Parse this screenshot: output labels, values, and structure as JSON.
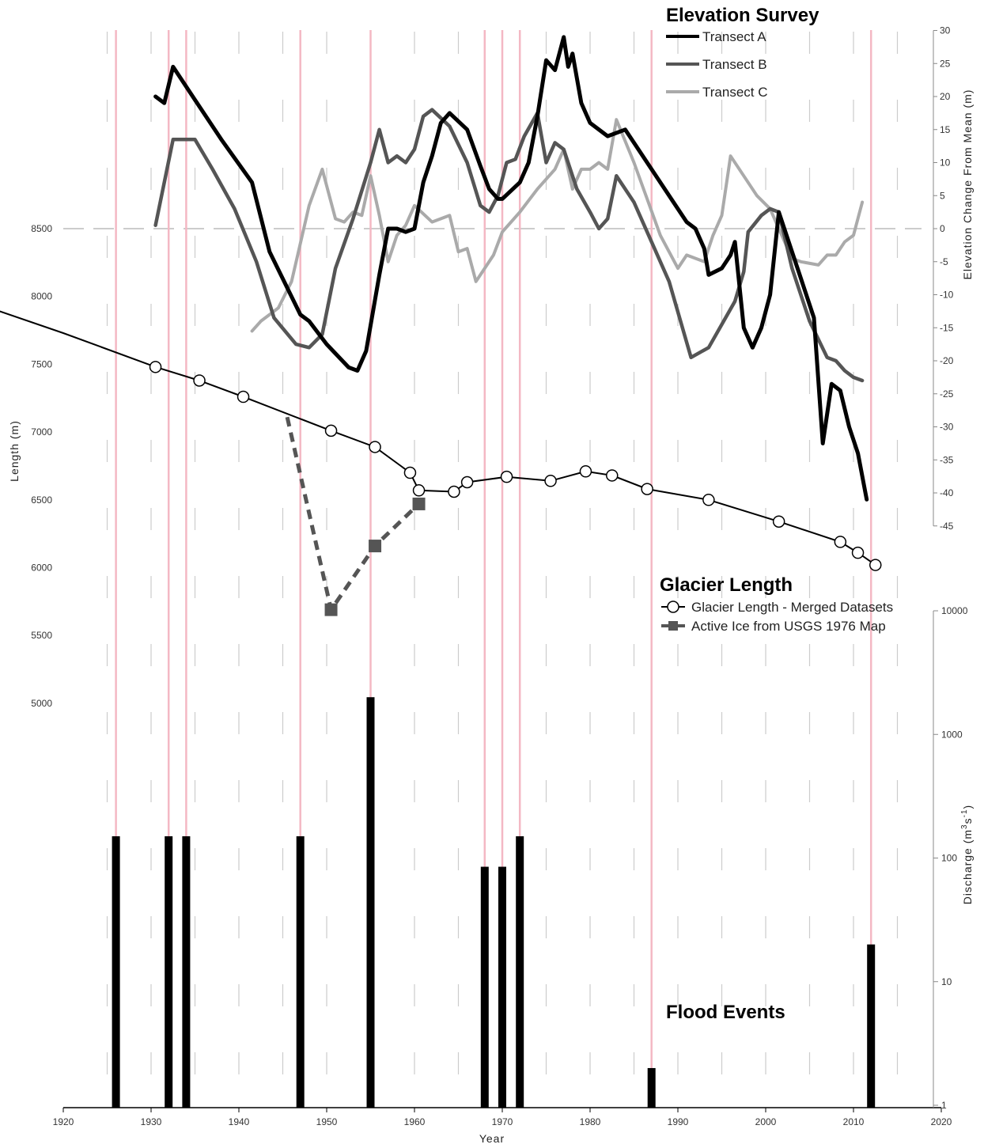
{
  "chart_data": {
    "type": "line",
    "x_axis": {
      "label": "Year",
      "range": [
        1920,
        2020
      ],
      "ticks": [
        1920,
        1930,
        1940,
        1950,
        1960,
        1970,
        1980,
        1990,
        2000,
        2010,
        2020
      ]
    },
    "y_axis_left": {
      "label": "Length (m)",
      "range": [
        5000,
        8500
      ],
      "ticks": [
        5000,
        5500,
        6000,
        6500,
        7000,
        7500,
        8000,
        8500
      ]
    },
    "y_axis_right_top": {
      "label": "Elevation Change From Mean (m)",
      "range": [
        -45,
        30
      ],
      "ticks": [
        30,
        25,
        20,
        15,
        10,
        5,
        0,
        -5,
        -10,
        -15,
        -20,
        -25,
        -30,
        -35,
        -40,
        -45
      ]
    },
    "y_axis_right_bottom": {
      "label": "Discharge (m3s-1)",
      "label_main": "Discharge (m",
      "label_sup": "3",
      "label_mid": "s",
      "label_sup2": "-1",
      "label_end": ")",
      "scale": "log",
      "range": [
        1,
        10000
      ],
      "ticks": [
        "10000",
        "1000",
        "100",
        "10",
        "1"
      ]
    },
    "sections": {
      "elevation": "Elevation Survey",
      "length": "Glacier Length",
      "flood": "Flood Events"
    },
    "elevation_series": [
      {
        "name": "Transect A",
        "color": "#000000",
        "points": [
          [
            1930.5,
            20
          ],
          [
            1931.5,
            19
          ],
          [
            1932.5,
            24.5
          ],
          [
            1935,
            19.5
          ],
          [
            1938,
            13.5
          ],
          [
            1941.5,
            7
          ],
          [
            1943.5,
            -3.5
          ],
          [
            1947,
            -13
          ],
          [
            1948,
            -14
          ],
          [
            1950,
            -17.5
          ],
          [
            1952.5,
            -21
          ],
          [
            1953.5,
            -21.5
          ],
          [
            1954.5,
            -18.5
          ],
          [
            1956,
            -7
          ],
          [
            1957,
            0
          ],
          [
            1958,
            0
          ],
          [
            1959,
            -0.5
          ],
          [
            1960,
            0
          ],
          [
            1961,
            7
          ],
          [
            1962,
            11
          ],
          [
            1963,
            16
          ],
          [
            1964,
            17.5
          ],
          [
            1966,
            15
          ],
          [
            1967.5,
            9.5
          ],
          [
            1968.5,
            6
          ],
          [
            1969.5,
            4.5
          ],
          [
            1970,
            4.5
          ],
          [
            1972,
            7
          ],
          [
            1973,
            10
          ],
          [
            1974,
            17
          ],
          [
            1975,
            25.5
          ],
          [
            1976,
            24
          ],
          [
            1977,
            29
          ],
          [
            1977.5,
            24.5
          ],
          [
            1978,
            26.5
          ],
          [
            1979,
            19
          ],
          [
            1980,
            16
          ],
          [
            1982,
            14
          ],
          [
            1984,
            15
          ],
          [
            1989,
            5
          ],
          [
            1991,
            1
          ],
          [
            1992,
            0
          ],
          [
            1993,
            -3
          ],
          [
            1993.5,
            -7
          ],
          [
            1995,
            -6
          ],
          [
            1996,
            -4
          ],
          [
            1996.5,
            -2
          ],
          [
            1997.5,
            -15
          ],
          [
            1998.5,
            -18
          ],
          [
            1999.5,
            -15
          ],
          [
            2000.5,
            -10
          ],
          [
            2001.5,
            2.5
          ],
          [
            2004,
            -7.5
          ],
          [
            2005.5,
            -13.5
          ],
          [
            2006.5,
            -32.5
          ],
          [
            2007.5,
            -23.5
          ],
          [
            2008.5,
            -24.5
          ],
          [
            2009.5,
            -30
          ],
          [
            2010.5,
            -34
          ],
          [
            2011.5,
            -41
          ]
        ]
      },
      {
        "name": "Transect B",
        "color": "#555555",
        "points": [
          [
            1930.5,
            0.5
          ],
          [
            1932.5,
            13.5
          ],
          [
            1935,
            13.5
          ],
          [
            1937,
            9
          ],
          [
            1939.5,
            3
          ],
          [
            1942,
            -5
          ],
          [
            1944,
            -13.5
          ],
          [
            1946.5,
            -17.5
          ],
          [
            1948,
            -18
          ],
          [
            1949.5,
            -16
          ],
          [
            1951,
            -6
          ],
          [
            1953,
            1.5
          ],
          [
            1955,
            10
          ],
          [
            1956,
            15
          ],
          [
            1957,
            10
          ],
          [
            1958,
            11
          ],
          [
            1959,
            10
          ],
          [
            1960,
            12
          ],
          [
            1961,
            17
          ],
          [
            1962,
            18
          ],
          [
            1964,
            15.5
          ],
          [
            1966,
            10
          ],
          [
            1967.5,
            3.5
          ],
          [
            1968.5,
            2.5
          ],
          [
            1969.5,
            5
          ],
          [
            1970.5,
            10
          ],
          [
            1971.5,
            10.5
          ],
          [
            1972.5,
            14
          ],
          [
            1974,
            17.5
          ],
          [
            1975,
            10
          ],
          [
            1976,
            13
          ],
          [
            1977,
            12
          ],
          [
            1978.5,
            6
          ],
          [
            1980,
            2.5
          ],
          [
            1981,
            0
          ],
          [
            1982,
            1.5
          ],
          [
            1983,
            8
          ],
          [
            1985,
            4
          ],
          [
            1987,
            -2
          ],
          [
            1989,
            -8
          ],
          [
            1991.5,
            -19.5
          ],
          [
            1993.5,
            -18
          ],
          [
            1996.5,
            -11
          ],
          [
            1997.5,
            -6.5
          ],
          [
            1998,
            -0.5
          ],
          [
            1999.5,
            2
          ],
          [
            2000.5,
            3
          ],
          [
            2001.5,
            2.5
          ],
          [
            2003,
            -6
          ],
          [
            2005,
            -14
          ],
          [
            2007,
            -19.5
          ],
          [
            2008,
            -20
          ],
          [
            2009,
            -21.5
          ],
          [
            2010,
            -22.5
          ],
          [
            2011,
            -23
          ]
        ]
      },
      {
        "name": "Transect C",
        "color": "#aaaaaa",
        "points": [
          [
            1941.5,
            -15.5
          ],
          [
            1942.5,
            -14
          ],
          [
            1943.5,
            -13
          ],
          [
            1944.5,
            -12
          ],
          [
            1946,
            -8
          ],
          [
            1948,
            3.5
          ],
          [
            1949.5,
            9
          ],
          [
            1951,
            1.5
          ],
          [
            1952,
            1
          ],
          [
            1953,
            2.5
          ],
          [
            1954,
            2
          ],
          [
            1955,
            8
          ],
          [
            1956,
            2
          ],
          [
            1957,
            -5
          ],
          [
            1958,
            -1
          ],
          [
            1959,
            0.5
          ],
          [
            1960,
            3.5
          ],
          [
            1962,
            1
          ],
          [
            1964,
            2
          ],
          [
            1965,
            -3.5
          ],
          [
            1966,
            -3
          ],
          [
            1967,
            -8
          ],
          [
            1968,
            -6
          ],
          [
            1969,
            -4
          ],
          [
            1970,
            -0.5
          ],
          [
            1972,
            2.5
          ],
          [
            1974,
            6
          ],
          [
            1976,
            9
          ],
          [
            1977,
            12
          ],
          [
            1978,
            6
          ],
          [
            1979,
            9
          ],
          [
            1980,
            9
          ],
          [
            1981,
            10
          ],
          [
            1982,
            9
          ],
          [
            1983,
            16.5
          ],
          [
            1985,
            10
          ],
          [
            1988,
            -1
          ],
          [
            1990,
            -6
          ],
          [
            1991,
            -4
          ],
          [
            1993,
            -5
          ],
          [
            1994,
            -1
          ],
          [
            1995,
            2
          ],
          [
            1996,
            11
          ],
          [
            1999,
            5
          ],
          [
            2000.5,
            3
          ],
          [
            2001.5,
            0
          ],
          [
            2003,
            -4.5
          ],
          [
            2004,
            -5
          ],
          [
            2006,
            -5.5
          ],
          [
            2007,
            -4
          ],
          [
            2008,
            -4
          ],
          [
            2009,
            -2
          ],
          [
            2010,
            -1
          ],
          [
            2011,
            4
          ]
        ]
      }
    ],
    "length_series": [
      {
        "name": "Glacier Length - Merged Datasets",
        "points": [
          [
            1911,
            7930
          ],
          [
            1920,
            7730
          ],
          [
            1930.5,
            7480
          ],
          [
            1935.5,
            7380
          ],
          [
            1940.5,
            7260
          ],
          [
            1950.5,
            7010
          ],
          [
            1955.5,
            6890
          ],
          [
            1959.5,
            6700
          ],
          [
            1960.5,
            6570
          ],
          [
            1964.5,
            6560
          ],
          [
            1966,
            6630
          ],
          [
            1970.5,
            6670
          ],
          [
            1975.5,
            6640
          ],
          [
            1979.5,
            6710
          ],
          [
            1982.5,
            6680
          ],
          [
            1986.5,
            6580
          ],
          [
            1993.5,
            6500
          ],
          [
            2001.5,
            6340
          ],
          [
            2008.5,
            6190
          ],
          [
            2010.5,
            6110
          ],
          [
            2012.5,
            6020
          ]
        ]
      },
      {
        "name": "Active Ice from USGS 1976 Map",
        "points": [
          [
            1945.5,
            7110
          ],
          [
            1950.5,
            5690
          ],
          [
            1955.5,
            6160
          ],
          [
            1960.5,
            6470
          ]
        ]
      }
    ],
    "flood_events": [
      {
        "year": 1926,
        "discharge": 150
      },
      {
        "year": 1932,
        "discharge": 150
      },
      {
        "year": 1934,
        "discharge": 150
      },
      {
        "year": 1947,
        "discharge": 150
      },
      {
        "year": 1955,
        "discharge": 2000
      },
      {
        "year": 1968,
        "discharge": 85
      },
      {
        "year": 1970,
        "discharge": 85
      },
      {
        "year": 1972,
        "discharge": 150
      },
      {
        "year": 1987,
        "discharge": 2
      },
      {
        "year": 2012,
        "discharge": 20
      }
    ],
    "colors": {
      "event_line": "#f4b8c4",
      "flood_bar": "#000000",
      "active_ice": "#555555",
      "grid_dash": "#cccccc"
    }
  }
}
